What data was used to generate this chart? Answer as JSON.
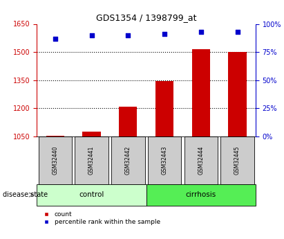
{
  "title": "GDS1354 / 1398799_at",
  "samples": [
    "GSM32440",
    "GSM32441",
    "GSM32442",
    "GSM32443",
    "GSM32444",
    "GSM32445"
  ],
  "counts": [
    1052,
    1075,
    1207,
    1345,
    1515,
    1500
  ],
  "percentile_ranks": [
    87,
    90,
    90,
    91,
    93,
    93
  ],
  "ylim_left": [
    1050,
    1650
  ],
  "ylim_right": [
    0,
    100
  ],
  "yticks_left": [
    1050,
    1200,
    1350,
    1500,
    1650
  ],
  "yticks_right": [
    0,
    25,
    50,
    75,
    100
  ],
  "ytick_labels_right": [
    "0%",
    "25%",
    "50%",
    "75%",
    "100%"
  ],
  "bar_color": "#cc0000",
  "dot_color": "#0000cc",
  "bar_bottom": 1050,
  "groups": [
    {
      "label": "control",
      "start": 0,
      "end": 2,
      "color": "#ccffcc"
    },
    {
      "label": "cirrhosis",
      "start": 3,
      "end": 5,
      "color": "#55ee55"
    }
  ],
  "background_plot": "#ffffff",
  "sample_box_color": "#cccccc",
  "dotted_line_color": "#000000",
  "left_axis_color": "#cc0000",
  "right_axis_color": "#0000cc",
  "fig_width": 4.11,
  "fig_height": 3.45,
  "dpi": 100
}
